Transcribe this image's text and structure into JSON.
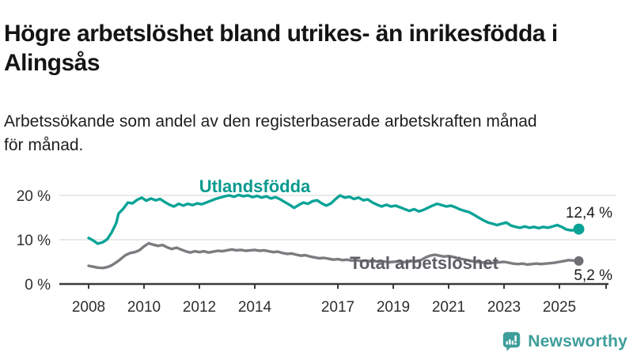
{
  "header": {
    "title_lines": [
      "Högre arbetslöshet bland utrikes- än inrikesfödda i",
      "Alingsås"
    ],
    "subtitle_lines": [
      "Arbetssökande som andel av den registerbaserade arbetskraften månad",
      "för månad."
    ]
  },
  "footer": {
    "brand": "Newsworthy"
  },
  "chart_data": {
    "type": "line",
    "title": "Högre arbetslöshet bland utrikes- än inrikesfödda i Alingsås",
    "subtitle": "Arbetssökande som andel av den registerbaserade arbetskraften månad för månad.",
    "grid": "horizontal",
    "legend_position": "inline-labels",
    "xlim": [
      2007.9,
      2025.9
    ],
    "ylim": [
      0,
      23
    ],
    "grid_color": "#dcdcdc",
    "axis_color": "#3a3a3a",
    "axis_text_color": "#2e2e2e",
    "value_label_color": "#1a1a1a",
    "y_ticks": [
      {
        "label": "0 %",
        "value": 0
      },
      {
        "label": "10 %",
        "value": 10
      },
      {
        "label": "20 %",
        "value": 20
      }
    ],
    "x_ticks": [
      {
        "label": "2008",
        "year": 2008
      },
      {
        "label": "2010",
        "year": 2010
      },
      {
        "label": "2012",
        "year": 2012
      },
      {
        "label": "2014",
        "year": 2014
      },
      {
        "label": "2017",
        "year": 2017
      },
      {
        "label": "2019",
        "year": 2019
      },
      {
        "label": "2021",
        "year": 2021
      },
      {
        "label": "2023",
        "year": 2023
      },
      {
        "label": "2025",
        "year": 2025
      }
    ],
    "series": [
      {
        "id": "utlandsfodda",
        "name": "Utlandsfödda",
        "color": "#0aa396",
        "label_color": "#089a8e",
        "dot_color": "#0aa396",
        "end_value": 12.4,
        "end_label": "12,4 %",
        "points": [
          [
            2008.0,
            10.4
          ],
          [
            2008.17,
            9.8
          ],
          [
            2008.33,
            9.1
          ],
          [
            2008.5,
            9.4
          ],
          [
            2008.67,
            10.1
          ],
          [
            2008.83,
            11.6
          ],
          [
            2009.0,
            13.8
          ],
          [
            2009.08,
            15.9
          ],
          [
            2009.25,
            17.0
          ],
          [
            2009.42,
            18.4
          ],
          [
            2009.58,
            18.2
          ],
          [
            2009.75,
            19.0
          ],
          [
            2009.92,
            19.5
          ],
          [
            2010.08,
            18.8
          ],
          [
            2010.25,
            19.3
          ],
          [
            2010.42,
            18.9
          ],
          [
            2010.58,
            19.2
          ],
          [
            2010.75,
            18.5
          ],
          [
            2010.92,
            17.9
          ],
          [
            2011.08,
            17.5
          ],
          [
            2011.25,
            18.1
          ],
          [
            2011.42,
            17.7
          ],
          [
            2011.58,
            18.1
          ],
          [
            2011.75,
            17.8
          ],
          [
            2011.92,
            18.2
          ],
          [
            2012.08,
            18.0
          ],
          [
            2012.25,
            18.4
          ],
          [
            2012.42,
            18.8
          ],
          [
            2012.58,
            19.2
          ],
          [
            2012.75,
            19.5
          ],
          [
            2012.92,
            19.8
          ],
          [
            2013.08,
            20.0
          ],
          [
            2013.25,
            19.7
          ],
          [
            2013.42,
            20.1
          ],
          [
            2013.58,
            19.8
          ],
          [
            2013.75,
            20.0
          ],
          [
            2013.92,
            19.6
          ],
          [
            2014.08,
            19.9
          ],
          [
            2014.25,
            19.5
          ],
          [
            2014.42,
            19.8
          ],
          [
            2014.58,
            19.3
          ],
          [
            2014.75,
            19.6
          ],
          [
            2014.92,
            19.1
          ],
          [
            2015.08,
            18.5
          ],
          [
            2015.25,
            17.9
          ],
          [
            2015.42,
            17.2
          ],
          [
            2015.58,
            17.8
          ],
          [
            2015.75,
            18.4
          ],
          [
            2015.92,
            18.1
          ],
          [
            2016.08,
            18.7
          ],
          [
            2016.25,
            18.9
          ],
          [
            2016.42,
            18.2
          ],
          [
            2016.58,
            17.7
          ],
          [
            2016.75,
            18.2
          ],
          [
            2016.92,
            19.2
          ],
          [
            2017.08,
            20.0
          ],
          [
            2017.25,
            19.5
          ],
          [
            2017.42,
            19.7
          ],
          [
            2017.58,
            19.2
          ],
          [
            2017.75,
            19.5
          ],
          [
            2017.92,
            18.9
          ],
          [
            2018.08,
            19.1
          ],
          [
            2018.25,
            18.4
          ],
          [
            2018.42,
            17.9
          ],
          [
            2018.58,
            17.5
          ],
          [
            2018.75,
            17.9
          ],
          [
            2018.92,
            17.5
          ],
          [
            2019.08,
            17.7
          ],
          [
            2019.25,
            17.3
          ],
          [
            2019.42,
            16.9
          ],
          [
            2019.58,
            16.5
          ],
          [
            2019.75,
            16.9
          ],
          [
            2019.92,
            16.4
          ],
          [
            2020.08,
            16.7
          ],
          [
            2020.25,
            17.2
          ],
          [
            2020.42,
            17.7
          ],
          [
            2020.58,
            18.1
          ],
          [
            2020.75,
            17.8
          ],
          [
            2020.92,
            17.5
          ],
          [
            2021.08,
            17.7
          ],
          [
            2021.25,
            17.3
          ],
          [
            2021.42,
            16.8
          ],
          [
            2021.58,
            16.5
          ],
          [
            2021.75,
            16.2
          ],
          [
            2021.92,
            15.6
          ],
          [
            2022.08,
            15.0
          ],
          [
            2022.25,
            14.4
          ],
          [
            2022.42,
            13.9
          ],
          [
            2022.58,
            13.6
          ],
          [
            2022.75,
            13.3
          ],
          [
            2022.92,
            13.6
          ],
          [
            2023.08,
            13.9
          ],
          [
            2023.25,
            13.2
          ],
          [
            2023.42,
            12.9
          ],
          [
            2023.58,
            12.7
          ],
          [
            2023.75,
            13.0
          ],
          [
            2023.92,
            12.7
          ],
          [
            2024.08,
            12.9
          ],
          [
            2024.25,
            12.6
          ],
          [
            2024.42,
            12.9
          ],
          [
            2024.58,
            12.7
          ],
          [
            2024.75,
            13.0
          ],
          [
            2024.92,
            13.3
          ],
          [
            2025.08,
            12.9
          ],
          [
            2025.25,
            12.3
          ],
          [
            2025.42,
            12.1
          ],
          [
            2025.58,
            12.2
          ],
          [
            2025.7,
            12.4
          ]
        ]
      },
      {
        "id": "total-arbetsloshet",
        "name": "Total arbetslöshet",
        "color": "#7b7b80",
        "label_color": "#5e5e66",
        "dot_color": "#6e6e73",
        "end_value": 5.2,
        "end_label": "5,2 %",
        "points": [
          [
            2008.0,
            4.1
          ],
          [
            2008.17,
            3.9
          ],
          [
            2008.33,
            3.7
          ],
          [
            2008.5,
            3.6
          ],
          [
            2008.67,
            3.8
          ],
          [
            2008.83,
            4.2
          ],
          [
            2009.0,
            4.9
          ],
          [
            2009.17,
            5.7
          ],
          [
            2009.33,
            6.5
          ],
          [
            2009.5,
            7.0
          ],
          [
            2009.67,
            7.2
          ],
          [
            2009.83,
            7.6
          ],
          [
            2010.0,
            8.5
          ],
          [
            2010.17,
            9.2
          ],
          [
            2010.33,
            8.9
          ],
          [
            2010.5,
            8.6
          ],
          [
            2010.67,
            8.8
          ],
          [
            2010.83,
            8.3
          ],
          [
            2011.0,
            7.9
          ],
          [
            2011.17,
            8.2
          ],
          [
            2011.33,
            7.8
          ],
          [
            2011.5,
            7.4
          ],
          [
            2011.67,
            7.1
          ],
          [
            2011.83,
            7.4
          ],
          [
            2012.0,
            7.2
          ],
          [
            2012.17,
            7.4
          ],
          [
            2012.33,
            7.1
          ],
          [
            2012.5,
            7.3
          ],
          [
            2012.67,
            7.5
          ],
          [
            2012.83,
            7.4
          ],
          [
            2013.0,
            7.6
          ],
          [
            2013.17,
            7.8
          ],
          [
            2013.33,
            7.6
          ],
          [
            2013.5,
            7.7
          ],
          [
            2013.67,
            7.5
          ],
          [
            2013.83,
            7.6
          ],
          [
            2014.0,
            7.7
          ],
          [
            2014.17,
            7.5
          ],
          [
            2014.33,
            7.6
          ],
          [
            2014.5,
            7.4
          ],
          [
            2014.67,
            7.2
          ],
          [
            2014.83,
            7.3
          ],
          [
            2015.0,
            7.0
          ],
          [
            2015.17,
            6.8
          ],
          [
            2015.33,
            6.9
          ],
          [
            2015.5,
            6.6
          ],
          [
            2015.67,
            6.4
          ],
          [
            2015.83,
            6.5
          ],
          [
            2016.0,
            6.2
          ],
          [
            2016.17,
            6.0
          ],
          [
            2016.33,
            5.8
          ],
          [
            2016.5,
            5.9
          ],
          [
            2016.67,
            5.7
          ],
          [
            2016.83,
            5.5
          ],
          [
            2017.0,
            5.6
          ],
          [
            2017.17,
            5.4
          ],
          [
            2017.33,
            5.5
          ],
          [
            2017.5,
            5.3
          ],
          [
            2017.67,
            5.4
          ],
          [
            2017.83,
            5.2
          ],
          [
            2018.0,
            5.3
          ],
          [
            2018.17,
            5.1
          ],
          [
            2018.33,
            5.2
          ],
          [
            2018.5,
            5.0
          ],
          [
            2018.67,
            5.1
          ],
          [
            2018.83,
            4.9
          ],
          [
            2019.0,
            5.0
          ],
          [
            2019.17,
            5.1
          ],
          [
            2019.33,
            4.9
          ],
          [
            2019.5,
            5.0
          ],
          [
            2019.67,
            5.2
          ],
          [
            2019.83,
            5.1
          ],
          [
            2020.0,
            5.4
          ],
          [
            2020.17,
            6.0
          ],
          [
            2020.33,
            6.4
          ],
          [
            2020.5,
            6.6
          ],
          [
            2020.67,
            6.4
          ],
          [
            2020.83,
            6.2
          ],
          [
            2021.0,
            6.3
          ],
          [
            2021.17,
            6.1
          ],
          [
            2021.33,
            5.8
          ],
          [
            2021.5,
            5.6
          ],
          [
            2021.67,
            5.4
          ],
          [
            2021.83,
            5.2
          ],
          [
            2022.0,
            5.0
          ],
          [
            2022.17,
            4.9
          ],
          [
            2022.33,
            4.8
          ],
          [
            2022.5,
            4.7
          ],
          [
            2022.67,
            4.8
          ],
          [
            2022.83,
            4.9
          ],
          [
            2023.0,
            5.0
          ],
          [
            2023.17,
            4.8
          ],
          [
            2023.33,
            4.6
          ],
          [
            2023.5,
            4.5
          ],
          [
            2023.67,
            4.6
          ],
          [
            2023.83,
            4.4
          ],
          [
            2024.0,
            4.5
          ],
          [
            2024.17,
            4.6
          ],
          [
            2024.33,
            4.5
          ],
          [
            2024.5,
            4.6
          ],
          [
            2024.67,
            4.7
          ],
          [
            2024.83,
            4.8
          ],
          [
            2025.0,
            5.0
          ],
          [
            2025.17,
            5.2
          ],
          [
            2025.33,
            5.4
          ],
          [
            2025.5,
            5.3
          ],
          [
            2025.7,
            5.2
          ]
        ]
      }
    ]
  }
}
